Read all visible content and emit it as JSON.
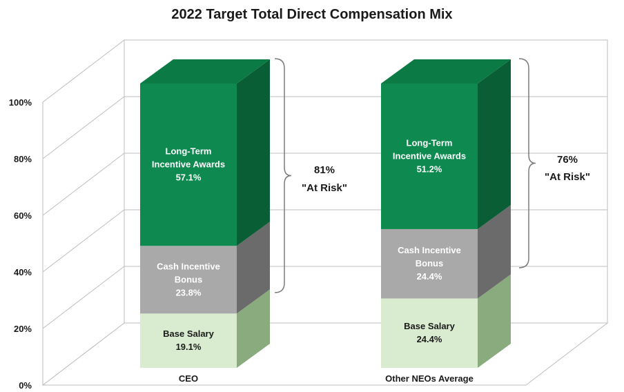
{
  "chart_data": {
    "type": "bar",
    "stacked": true,
    "three_d": true,
    "title": "2022 Target Total Direct Compensation Mix",
    "categories": [
      "CEO",
      "Other NEOs Average"
    ],
    "y_ticks": [
      "0%",
      "20%",
      "40%",
      "60%",
      "80%",
      "100%"
    ],
    "ylim": [
      0,
      100
    ],
    "grid": true,
    "series": [
      {
        "key": "base",
        "lines": [
          "Base Salary"
        ],
        "values": [
          19.1,
          24.4
        ],
        "labels": [
          "19.1%",
          "24.4%"
        ],
        "color": "#d9ecd0",
        "top_color": "#c7ddb9",
        "side_color": "#8aab7e",
        "text_color": "#1a1a1a"
      },
      {
        "key": "cash",
        "lines": [
          "Cash Incentive",
          "Bonus"
        ],
        "values": [
          23.8,
          24.4
        ],
        "labels": [
          "23.8%",
          "24.4%"
        ],
        "color": "#a9a9a9",
        "top_color": "#8d8d8d",
        "side_color": "#6b6b6b",
        "text_color": "#ffffff"
      },
      {
        "key": "lti",
        "lines": [
          "Long-Term",
          "Incentive Awards"
        ],
        "values": [
          57.1,
          51.2
        ],
        "labels": [
          "57.1%",
          "51.2%"
        ],
        "color": "#0e8a50",
        "top_color": "#0c7a45",
        "side_color": "#0a5e36",
        "text_color": "#ffffff"
      }
    ],
    "annotations": [
      {
        "category": "CEO",
        "line1": "81%",
        "line2": "\"At Risk\""
      },
      {
        "category": "Other NEOs Average",
        "line1": "76%",
        "line2": "\"At Risk\""
      }
    ]
  }
}
